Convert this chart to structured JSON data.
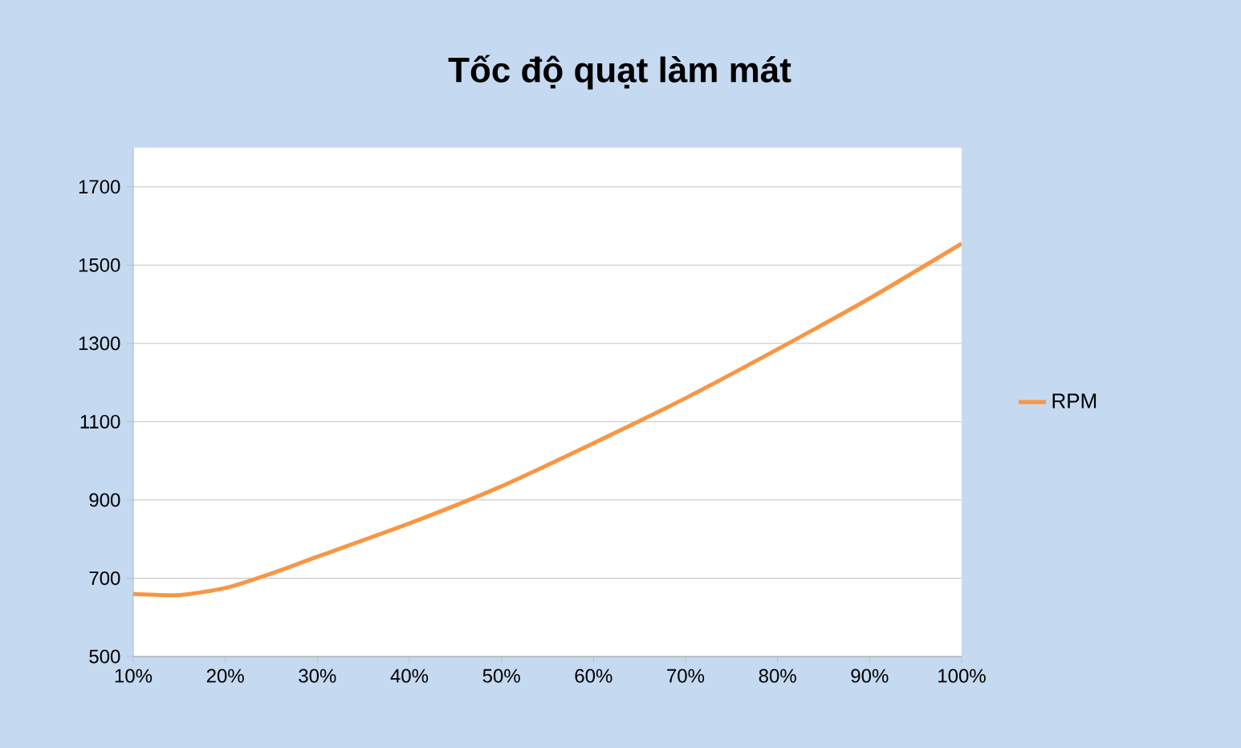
{
  "chart_data": {
    "type": "line",
    "title": "Tốc độ quạt làm mát",
    "x": [
      10,
      15,
      20,
      25,
      30,
      40,
      50,
      60,
      70,
      80,
      90,
      100
    ],
    "series": [
      {
        "name": "RPM",
        "color": "#f79646",
        "values": [
          660,
          657,
          675,
          712,
          755,
          840,
          935,
          1045,
          1160,
          1285,
          1415,
          1555
        ]
      }
    ],
    "xlim": [
      10,
      100
    ],
    "xticks": [
      {
        "value": 10,
        "label": "10%"
      },
      {
        "value": 20,
        "label": "20%"
      },
      {
        "value": 30,
        "label": "30%"
      },
      {
        "value": 40,
        "label": "40%"
      },
      {
        "value": 50,
        "label": "50%"
      },
      {
        "value": 60,
        "label": "60%"
      },
      {
        "value": 70,
        "label": "70%"
      },
      {
        "value": 80,
        "label": "80%"
      },
      {
        "value": 90,
        "label": "90%"
      },
      {
        "value": 100,
        "label": "100%"
      }
    ],
    "ylim": [
      500,
      1800
    ],
    "yticks": [
      500,
      700,
      900,
      1100,
      1300,
      1500,
      1700
    ],
    "grid": "y",
    "legend": "right",
    "marker": "none",
    "line_style": "solid"
  }
}
